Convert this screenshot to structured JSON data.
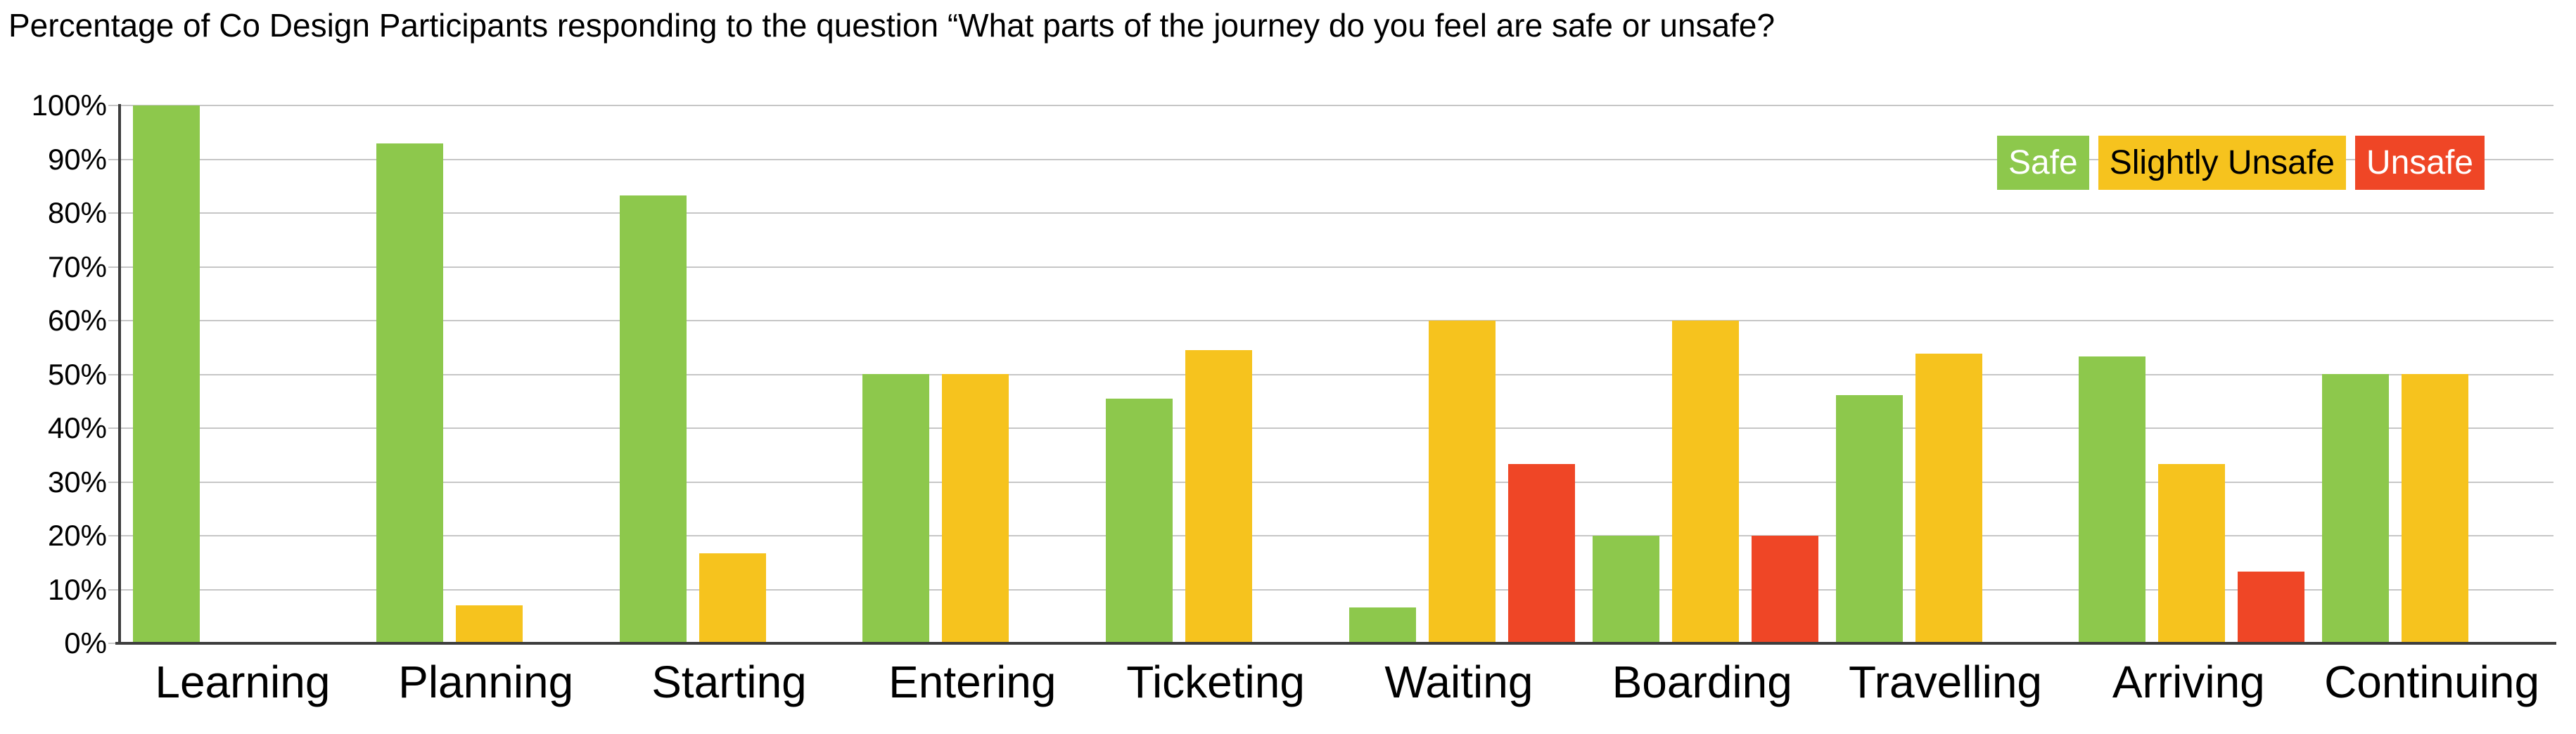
{
  "title": "Percentage of Co Design Participants responding to the question “What parts of the journey do you feel are safe or unsafe?",
  "colors": {
    "safe": "#8DC84C",
    "slightly_unsafe": "#F6C31E",
    "unsafe": "#EF4626",
    "grid": "#C6C6C6",
    "axis": "#3D3D3D",
    "text": "#000000",
    "background": "#FFFFFF"
  },
  "legend": [
    {
      "label": "Safe",
      "color": "#8DC84C",
      "text_color": "#FFFFFF"
    },
    {
      "label": "Slightly Unsafe",
      "color": "#F6C31E",
      "text_color": "#000000"
    },
    {
      "label": "Unsafe",
      "color": "#EF4626",
      "text_color": "#FFFFFF"
    }
  ],
  "chart_data": {
    "type": "bar",
    "title": "Percentage of Co Design Participants responding to the question “What parts of the journey do you feel are safe or unsafe?",
    "categories": [
      "Learning",
      "Planning",
      "Starting",
      "Entering",
      "Ticketing",
      "Waiting",
      "Boarding",
      "Travelling",
      "Arriving",
      "Continuing"
    ],
    "series": [
      {
        "name": "Safe",
        "color": "#8DC84C",
        "values": [
          100,
          92.9,
          83.3,
          50,
          45.5,
          6.7,
          20,
          46.2,
          53.3,
          50
        ]
      },
      {
        "name": "Slightly Unsafe",
        "color": "#F6C31E",
        "values": [
          0,
          7.1,
          16.7,
          50,
          54.5,
          60,
          60,
          53.8,
          33.3,
          50
        ]
      },
      {
        "name": "Unsafe",
        "color": "#EF4626",
        "values": [
          0,
          0,
          0,
          0,
          0,
          33.3,
          20,
          0,
          13.3,
          0
        ]
      }
    ],
    "xlabel": "",
    "ylabel": "",
    "ylim": [
      0,
      100
    ],
    "ytick_step": 10,
    "ytick_labels": [
      "0%",
      "10%",
      "20%",
      "30%",
      "40%",
      "50%",
      "60%",
      "70%",
      "80%",
      "90%",
      "100%"
    ],
    "grid": "horizontal",
    "legend_position": "top-right"
  }
}
